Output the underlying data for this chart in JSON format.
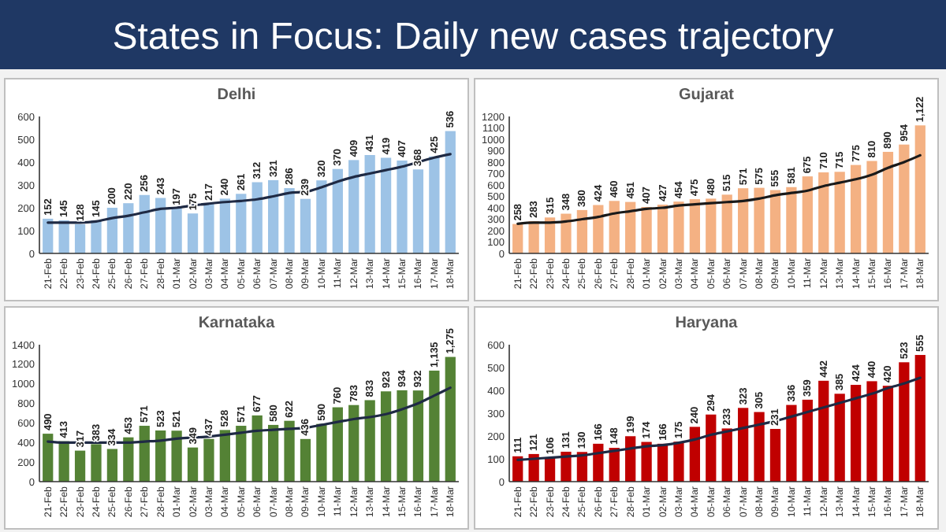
{
  "chart_data": [
    {
      "type": "bar",
      "title": "Delhi",
      "annotations": [
        "States in Focus: Daily new cases trajectory"
      ],
      "categories": [
        "21-Feb",
        "22-Feb",
        "23-Feb",
        "24-Feb",
        "25-Feb",
        "26-Feb",
        "27-Feb",
        "28-Feb",
        "01-Mar",
        "02-Mar",
        "03-Mar",
        "04-Mar",
        "05-Mar",
        "06-Mar",
        "07-Mar",
        "08-Mar",
        "09-Mar",
        "10-Mar",
        "11-Mar",
        "12-Mar",
        "13-Mar",
        "14-Mar",
        "15-Mar",
        "16-Mar",
        "17-Mar",
        "18-Mar"
      ],
      "ylim": [
        0,
        600
      ],
      "yticks": [
        0,
        100,
        200,
        300,
        400,
        500,
        600
      ],
      "series": [
        {
          "color": "#9dc3e6",
          "values": [
            152,
            145,
            128,
            145,
            200,
            220,
            256,
            243,
            197,
            175,
            217,
            240,
            261,
            312,
            321,
            286,
            239,
            320,
            370,
            409,
            431,
            419,
            407,
            368,
            425,
            536
          ],
          "value_labels": [
            "152",
            "145",
            "128",
            "145",
            "200",
            "220",
            "256",
            "243",
            "197",
            "175",
            "217",
            "240",
            "261",
            "312",
            "321",
            "286",
            "239",
            "320",
            "370",
            "409",
            "431",
            "419",
            "407",
            "368",
            "425",
            "536"
          ]
        },
        {
          "type": "line",
          "color": "#1f2a44",
          "values": [
            135,
            135,
            135,
            140,
            155,
            165,
            180,
            195,
            200,
            210,
            218,
            225,
            230,
            237,
            250,
            265,
            270,
            290,
            315,
            335,
            350,
            365,
            380,
            400,
            420,
            435
          ]
        }
      ]
    },
    {
      "type": "bar",
      "title": "Gujarat",
      "categories": [
        "21-Feb",
        "22-Feb",
        "23-Feb",
        "24-Feb",
        "25-Feb",
        "26-Feb",
        "27-Feb",
        "28-Feb",
        "01-Mar",
        "02-Mar",
        "03-Mar",
        "04-Mar",
        "05-Mar",
        "06-Mar",
        "07-Mar",
        "08-Mar",
        "09-Mar",
        "10-Mar",
        "11-Mar",
        "12-Mar",
        "13-Mar",
        "14-Mar",
        "15-Mar",
        "16-Mar",
        "17-Mar",
        "18-Mar"
      ],
      "ylim": [
        0,
        1200
      ],
      "yticks": [
        0,
        100,
        200,
        300,
        400,
        500,
        600,
        700,
        800,
        900,
        1000,
        1100,
        1200
      ],
      "series": [
        {
          "color": "#f4b183",
          "values": [
            258,
            283,
            315,
            348,
            380,
            424,
            460,
            451,
            407,
            427,
            454,
            475,
            480,
            515,
            571,
            575,
            555,
            581,
            675,
            710,
            715,
            775,
            810,
            890,
            954,
            1122
          ],
          "value_labels": [
            "258",
            "283",
            "315",
            "348",
            "380",
            "424",
            "460",
            "451",
            "407",
            "427",
            "454",
            "475",
            "480",
            "515",
            "571",
            "575",
            "555",
            "581",
            "675",
            "710",
            "715",
            "775",
            "810",
            "890",
            "954",
            "1,122"
          ]
        },
        {
          "type": "line",
          "color": "#1a1a1a",
          "values": [
            260,
            270,
            270,
            280,
            300,
            320,
            350,
            370,
            390,
            400,
            420,
            430,
            440,
            450,
            460,
            480,
            510,
            530,
            550,
            590,
            620,
            650,
            690,
            750,
            800,
            860
          ]
        }
      ]
    },
    {
      "type": "bar",
      "title": "Karnataka",
      "categories": [
        "21-Feb",
        "22-Feb",
        "23-Feb",
        "24-Feb",
        "25-Feb",
        "26-Feb",
        "27-Feb",
        "28-Feb",
        "01-Mar",
        "02-Mar",
        "03-Mar",
        "04-Mar",
        "05-Mar",
        "06-Mar",
        "07-Mar",
        "08-Mar",
        "09-Mar",
        "10-Mar",
        "11-Mar",
        "12-Mar",
        "13-Mar",
        "14-Mar",
        "15-Mar",
        "16-Mar",
        "17-Mar",
        "18-Mar"
      ],
      "ylim": [
        0,
        1400
      ],
      "yticks": [
        0,
        200,
        400,
        600,
        800,
        1000,
        1200,
        1400
      ],
      "series": [
        {
          "color": "#548235",
          "values": [
            490,
            413,
            317,
            383,
            334,
            453,
            571,
            523,
            521,
            349,
            437,
            528,
            571,
            677,
            580,
            622,
            436,
            590,
            760,
            783,
            833,
            923,
            934,
            932,
            1135,
            1275
          ],
          "value_labels": [
            "490",
            "413",
            "317",
            "383",
            "334",
            "453",
            "571",
            "523",
            "521",
            "349",
            "437",
            "528",
            "571",
            "677",
            "580",
            "622",
            "436",
            "590",
            "760",
            "783",
            "833",
            "923",
            "934",
            "932",
            "1,135",
            "1,275"
          ]
        },
        {
          "type": "line",
          "color": "#1f2a44",
          "values": [
            410,
            400,
            400,
            400,
            400,
            400,
            410,
            420,
            440,
            450,
            460,
            480,
            500,
            520,
            530,
            540,
            550,
            580,
            610,
            640,
            660,
            690,
            740,
            800,
            880,
            960
          ]
        }
      ]
    },
    {
      "type": "bar",
      "title": "Haryana",
      "categories": [
        "21-Feb",
        "22-Feb",
        "23-Feb",
        "24-Feb",
        "25-Feb",
        "26-Feb",
        "27-Feb",
        "28-Feb",
        "01-Mar",
        "02-Mar",
        "03-Mar",
        "04-Mar",
        "05-Mar",
        "06-Mar",
        "07-Mar",
        "08-Mar",
        "09-Mar",
        "10-Mar",
        "11-Mar",
        "12-Mar",
        "13-Mar",
        "14-Mar",
        "15-Mar",
        "16-Mar",
        "17-Mar",
        "18-Mar"
      ],
      "ylim": [
        0,
        600
      ],
      "yticks": [
        0,
        100,
        200,
        300,
        400,
        500,
        600
      ],
      "series": [
        {
          "color": "#c00000",
          "values": [
            111,
            121,
            106,
            131,
            130,
            166,
            148,
            199,
            174,
            166,
            175,
            240,
            294,
            233,
            323,
            305,
            231,
            336,
            359,
            442,
            385,
            424,
            440,
            420,
            523,
            555
          ],
          "value_labels": [
            "111",
            "121",
            "106",
            "131",
            "130",
            "166",
            "148",
            "199",
            "174",
            "166",
            "175",
            "240",
            "294",
            "233",
            "323",
            "305",
            "231",
            "336",
            "359",
            "442",
            "385",
            "424",
            "440",
            "420",
            "523",
            "555"
          ]
        },
        {
          "type": "line",
          "color": "#1f2a44",
          "values": [
            95,
            100,
            105,
            110,
            115,
            125,
            135,
            145,
            155,
            160,
            170,
            185,
            205,
            220,
            235,
            250,
            265,
            285,
            305,
            325,
            345,
            365,
            385,
            410,
            430,
            455
          ]
        }
      ]
    }
  ]
}
